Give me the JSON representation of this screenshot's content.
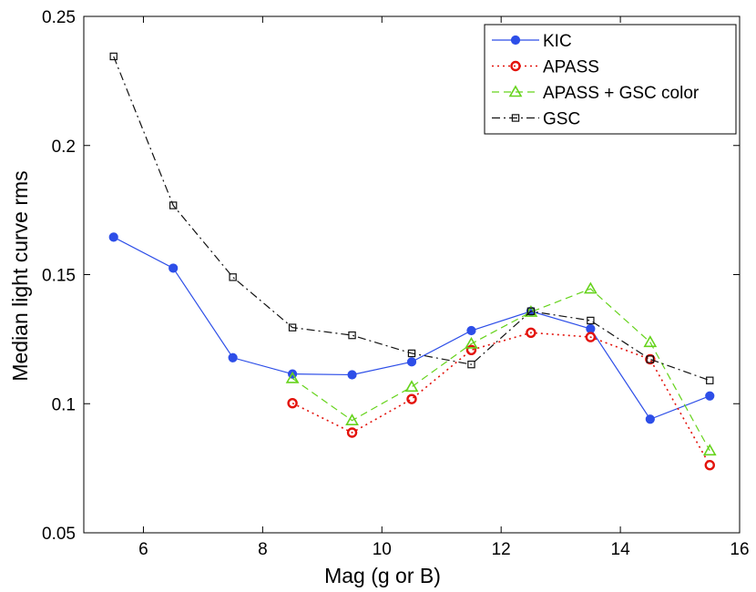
{
  "chart_data": {
    "type": "line",
    "title": "",
    "xlabel": "Mag (g or B)",
    "ylabel": "Median light curve rms",
    "xlim": [
      5,
      16
    ],
    "ylim": [
      0.05,
      0.25
    ],
    "xticks": [
      6,
      8,
      10,
      12,
      14,
      16
    ],
    "xtick_labels": [
      "6",
      "8",
      "10",
      "12",
      "14",
      "16"
    ],
    "yticks": [
      0.05,
      0.1,
      0.15,
      0.2,
      0.25
    ],
    "ytick_labels": [
      "0.05",
      "0.1",
      "0.15",
      "0.2",
      "0.25"
    ],
    "grid": false,
    "legend_position": "top-right",
    "series": [
      {
        "name": "KIC",
        "color": "#2d4ee8",
        "marker": "filled-circle",
        "line_style": "solid",
        "x": [
          5.5,
          6.5,
          7.5,
          8.5,
          9.5,
          10.5,
          11.5,
          12.5,
          13.5,
          14.5,
          15.5
        ],
        "values": [
          0.1645,
          0.1525,
          0.1178,
          0.1115,
          0.1112,
          0.1162,
          0.1283,
          0.1358,
          0.129,
          0.094,
          0.103
        ]
      },
      {
        "name": "APASS",
        "color": "#e3120b",
        "marker": "open-circle",
        "line_style": "dotted",
        "x": [
          8.5,
          9.5,
          10.5,
          11.5,
          12.5,
          13.5,
          14.5,
          15.5
        ],
        "values": [
          0.1002,
          0.0888,
          0.1018,
          0.1208,
          0.1275,
          0.1258,
          0.1172,
          0.0762
        ]
      },
      {
        "name": "APASS + GSC color",
        "color": "#66d31c",
        "marker": "open-triangle",
        "line_style": "dashed",
        "x": [
          8.5,
          9.5,
          10.5,
          11.5,
          12.5,
          13.5,
          14.5,
          15.5
        ],
        "values": [
          0.1098,
          0.0935,
          0.1065,
          0.1232,
          0.1355,
          0.1445,
          0.1238,
          0.0818
        ]
      },
      {
        "name": "GSC",
        "color": "#111111",
        "marker": "open-square",
        "line_style": "dashdot",
        "x": [
          5.5,
          6.5,
          7.5,
          8.5,
          9.5,
          10.5,
          11.5,
          12.5,
          13.5,
          14.5,
          15.5
        ],
        "values": [
          0.2345,
          0.1768,
          0.149,
          0.1295,
          0.1265,
          0.1195,
          0.1152,
          0.1358,
          0.1322,
          0.1172,
          0.109
        ]
      }
    ]
  }
}
